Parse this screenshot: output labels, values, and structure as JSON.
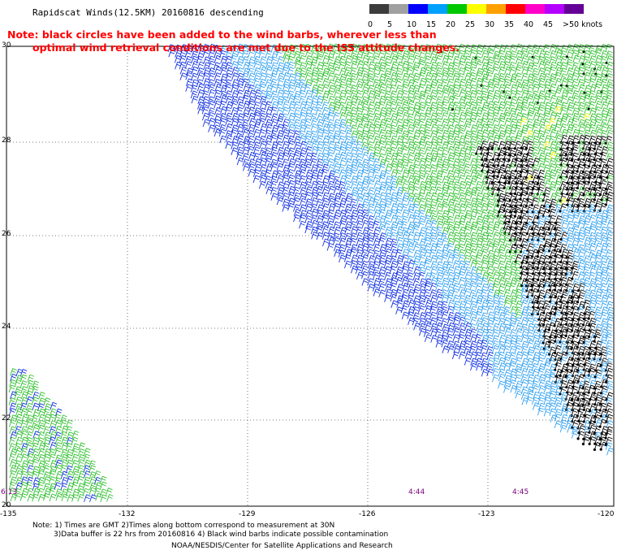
{
  "title": "Rapidscat Winds(12.5KM) 20160816 descending",
  "note": {
    "line1": "Note: black circles have been added to the wind barbs, wherever less than",
    "line2": "optimal wind retrieval conditions are met due to the ISS attitude changes."
  },
  "speed_scale": {
    "labels": [
      "0",
      "5",
      "10",
      "15",
      "20",
      "25",
      "30",
      "35",
      "40",
      "45",
      ">50 knots"
    ],
    "colors": [
      "#3c3c3c",
      "#a0a0a0",
      "#0000ff",
      "#00a0ff",
      "#00c800",
      "#ffff00",
      "#ffa000",
      "#ff0000",
      "#ff00c8",
      "#b400ff",
      "#640096"
    ]
  },
  "lat_labels": [
    "30",
    "28",
    "26",
    "24",
    "22",
    "20"
  ],
  "lon_labels": [
    "-135",
    "-132",
    "-129",
    "-126",
    "-123",
    "-120"
  ],
  "time_labels": [
    "6:13",
    "4:44",
    "4:45"
  ],
  "footer": {
    "line1": "Note: 1) Times are GMT 2)Times along bottom correspond to measurement at 30N",
    "line2": "3)Data buffer is 22 hrs from 20160816 4) Black wind barbs indicate possible contamination",
    "line3": "NOAA/NESDIS/Center for Satellite Applications and Research"
  },
  "colors": {
    "blue": "#1030e0",
    "lightblue": "#30a0f0",
    "green": "#30c030",
    "yellow": "#f0f000",
    "black": "#000000",
    "purple": "#7b007b",
    "red": "#ff0000"
  }
}
